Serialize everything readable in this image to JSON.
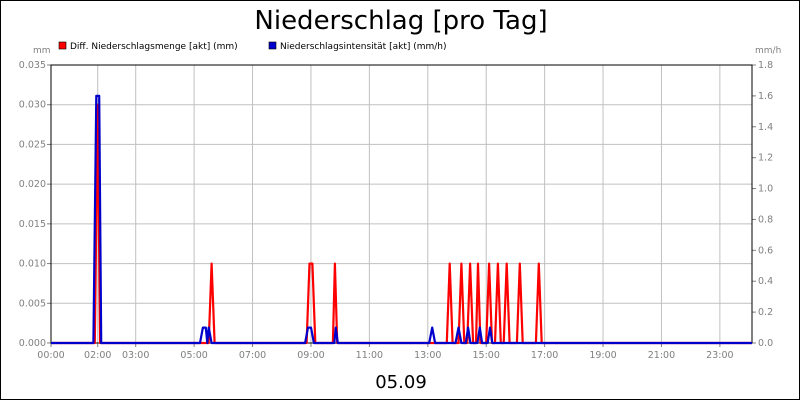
{
  "chart_data": {
    "type": "line",
    "title": "Niederschlag [pro Tag]",
    "xlabel": "05.09",
    "y_left_unit": "mm",
    "y_right_unit": "mm/h",
    "ylim_left": [
      0,
      0.035
    ],
    "ylim_right": [
      0,
      1.8
    ],
    "y_left_ticks": [
      "0.000",
      "0.005",
      "0.010",
      "0.015",
      "0.020",
      "0.025",
      "0.030",
      "0.035"
    ],
    "y_right_ticks": [
      "0.0",
      "0.2",
      "0.4",
      "0.6",
      "0.8",
      "1.0",
      "1.2",
      "1.4",
      "1.6",
      "1.8"
    ],
    "x_ticks": [
      {
        "label": "00:00",
        "hour": 0
      },
      {
        "label": "02:00",
        "hour": 1.6
      },
      {
        "label": "03:00",
        "hour": 2.9
      },
      {
        "label": "05:00",
        "hour": 4.9
      },
      {
        "label": "07:00",
        "hour": 6.9
      },
      {
        "label": "09:00",
        "hour": 8.9
      },
      {
        "label": "11:00",
        "hour": 10.9
      },
      {
        "label": "13:00",
        "hour": 12.9
      },
      {
        "label": "15:00",
        "hour": 14.9
      },
      {
        "label": "17:00",
        "hour": 16.9
      },
      {
        "label": "19:00",
        "hour": 18.9
      },
      {
        "label": "21:00",
        "hour": 20.9
      },
      {
        "label": "23:00",
        "hour": 22.9
      }
    ],
    "xlim": [
      0,
      24
    ],
    "grid": true,
    "legend_position": "top-left",
    "series": [
      {
        "name": "Diff. Niederschlagsmenge [akt] (mm)",
        "axis": "left",
        "color": "#ff0000",
        "points": [
          [
            0,
            0
          ],
          [
            1.5,
            0
          ],
          [
            1.6,
            0.03
          ],
          [
            1.68,
            0
          ],
          [
            5.4,
            0
          ],
          [
            5.5,
            0.01
          ],
          [
            5.6,
            0
          ],
          [
            8.75,
            0
          ],
          [
            8.85,
            0.01
          ],
          [
            8.95,
            0.01
          ],
          [
            9.05,
            0
          ],
          [
            9.65,
            0
          ],
          [
            9.72,
            0.01
          ],
          [
            9.8,
            0
          ],
          [
            13.55,
            0
          ],
          [
            13.65,
            0.01
          ],
          [
            13.75,
            0
          ],
          [
            13.95,
            0
          ],
          [
            14.05,
            0.01
          ],
          [
            14.15,
            0
          ],
          [
            14.25,
            0
          ],
          [
            14.35,
            0.01
          ],
          [
            14.45,
            0
          ],
          [
            14.55,
            0
          ],
          [
            14.62,
            0.01
          ],
          [
            14.7,
            0
          ],
          [
            14.9,
            0
          ],
          [
            15.0,
            0.01
          ],
          [
            15.1,
            0
          ],
          [
            15.2,
            0
          ],
          [
            15.3,
            0.01
          ],
          [
            15.4,
            0
          ],
          [
            15.5,
            0
          ],
          [
            15.6,
            0.01
          ],
          [
            15.7,
            0
          ],
          [
            15.95,
            0
          ],
          [
            16.05,
            0.01
          ],
          [
            16.15,
            0
          ],
          [
            16.6,
            0
          ],
          [
            16.7,
            0.01
          ],
          [
            16.8,
            0
          ],
          [
            24,
            0
          ]
        ]
      },
      {
        "name": "Niederschlagsintensität [akt] (mm/h)",
        "axis": "right",
        "color": "#0000cc",
        "points": [
          [
            0,
            0
          ],
          [
            1.45,
            0
          ],
          [
            1.55,
            1.6
          ],
          [
            1.65,
            1.6
          ],
          [
            1.72,
            0
          ],
          [
            5.1,
            0
          ],
          [
            5.2,
            0.1
          ],
          [
            5.3,
            0.1
          ],
          [
            5.35,
            0
          ],
          [
            5.4,
            0.1
          ],
          [
            5.5,
            0
          ],
          [
            8.7,
            0
          ],
          [
            8.8,
            0.1
          ],
          [
            8.9,
            0.1
          ],
          [
            9.0,
            0
          ],
          [
            9.7,
            0
          ],
          [
            9.75,
            0.1
          ],
          [
            9.82,
            0
          ],
          [
            12.95,
            0
          ],
          [
            13.05,
            0.1
          ],
          [
            13.15,
            0
          ],
          [
            13.85,
            0
          ],
          [
            13.95,
            0.1
          ],
          [
            14.05,
            0
          ],
          [
            14.2,
            0
          ],
          [
            14.28,
            0.1
          ],
          [
            14.36,
            0
          ],
          [
            14.6,
            0
          ],
          [
            14.68,
            0.1
          ],
          [
            14.76,
            0
          ],
          [
            14.95,
            0
          ],
          [
            15.03,
            0.1
          ],
          [
            15.11,
            0
          ],
          [
            24,
            0
          ]
        ]
      }
    ]
  }
}
